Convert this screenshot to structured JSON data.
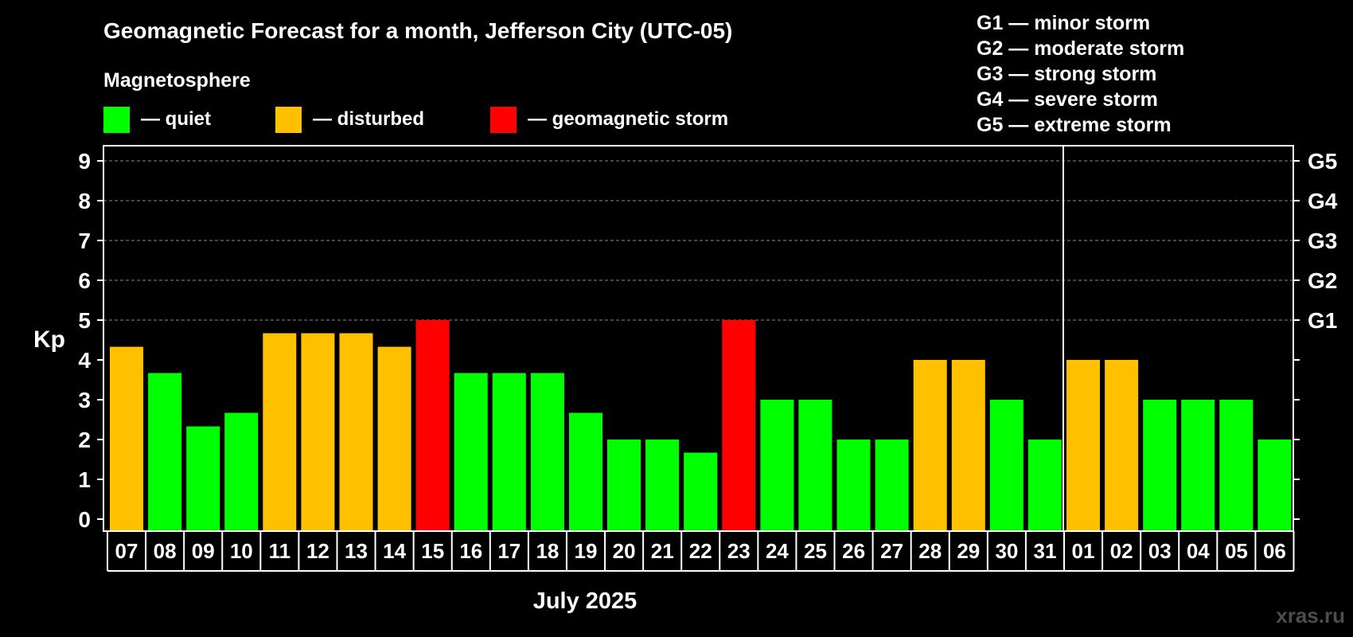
{
  "chart_data": {
    "type": "bar",
    "title": "Geomagnetic Forecast for a month, Jefferson City (UTC-05)",
    "legend": {
      "heading": "Magnetosphere",
      "items": [
        {
          "label": "— quiet",
          "color": "#00ff00"
        },
        {
          "label": "— disturbed",
          "color": "#ffc000"
        },
        {
          "label": "— geomagnetic storm",
          "color": "#ff0000"
        }
      ]
    },
    "storm_scale": [
      "G1 — minor storm",
      "G2 — moderate storm",
      "G3 — strong storm",
      "G4 — severe storm",
      "G5 — extreme storm"
    ],
    "ylabel": "Kp",
    "xlabel": "July 2025",
    "ylim": [
      0,
      9
    ],
    "yticks": [
      "0",
      "1",
      "2",
      "3",
      "4",
      "5",
      "6",
      "7",
      "8",
      "9"
    ],
    "right_labels": [
      {
        "kp": 5,
        "label": "G1"
      },
      {
        "kp": 6,
        "label": "G2"
      },
      {
        "kp": 7,
        "label": "G3"
      },
      {
        "kp": 8,
        "label": "G4"
      },
      {
        "kp": 9,
        "label": "G5"
      }
    ],
    "gridlines_at": [
      5,
      6,
      7,
      8,
      9
    ],
    "month_divider_after_index": 24,
    "categories": [
      "07",
      "08",
      "09",
      "10",
      "11",
      "12",
      "13",
      "14",
      "15",
      "16",
      "17",
      "18",
      "19",
      "20",
      "21",
      "22",
      "23",
      "24",
      "25",
      "26",
      "27",
      "28",
      "29",
      "30",
      "31",
      "01",
      "02",
      "03",
      "04",
      "05",
      "06"
    ],
    "values": [
      4.33,
      3.67,
      2.33,
      2.67,
      4.67,
      4.67,
      4.67,
      4.33,
      5,
      3.67,
      3.67,
      3.67,
      2.67,
      2,
      2,
      1.67,
      5,
      3,
      3,
      2,
      2,
      4,
      4,
      3,
      2,
      4,
      4,
      3,
      3,
      3,
      2
    ],
    "levels": [
      "disturbed",
      "quiet",
      "quiet",
      "quiet",
      "disturbed",
      "disturbed",
      "disturbed",
      "disturbed",
      "storm",
      "quiet",
      "quiet",
      "quiet",
      "quiet",
      "quiet",
      "quiet",
      "quiet",
      "storm",
      "quiet",
      "quiet",
      "quiet",
      "quiet",
      "disturbed",
      "disturbed",
      "quiet",
      "quiet",
      "disturbed",
      "disturbed",
      "quiet",
      "quiet",
      "quiet",
      "quiet"
    ],
    "level_colors": {
      "quiet": "#00ff00",
      "disturbed": "#ffc000",
      "storm": "#ff0000"
    }
  },
  "watermark": "xras.ru"
}
